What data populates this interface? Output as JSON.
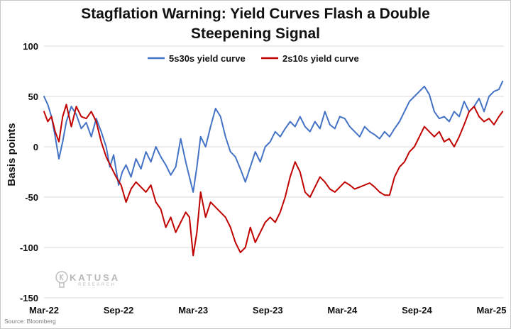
{
  "source": "Source: Bloomberg",
  "logo": {
    "word": "KATUSA",
    "sub": "RESEARCH"
  },
  "colors": {
    "five_s30s": "#4472c4",
    "two_s10s": "#c00000",
    "grid": "#d9d9d9"
  },
  "chart_data": {
    "type": "line",
    "title_line1": "Stagflation Warning: Yield Curves Flash a Double",
    "title_line2": "Steepening Signal",
    "xlabel": "",
    "ylabel": "Basis points",
    "ylim": [
      -150,
      100
    ],
    "yticks": [
      100,
      50,
      0,
      -50,
      -100,
      -150
    ],
    "xlim": [
      0,
      37
    ],
    "xticks": [
      {
        "x": 0,
        "label": "Mar-22"
      },
      {
        "x": 6,
        "label": "Sep-22"
      },
      {
        "x": 12,
        "label": "Mar-23"
      },
      {
        "x": 18,
        "label": "Sep-23"
      },
      {
        "x": 24,
        "label": "Mar-24"
      },
      {
        "x": 30,
        "label": "Sep-24"
      },
      {
        "x": 36,
        "label": "Mar-25"
      }
    ],
    "grid": "horizontal",
    "legend": "top-center",
    "series": [
      {
        "name": "5s30s yield curve",
        "color": "#4472c4",
        "x": [
          0,
          0.3,
          0.6,
          0.9,
          1.2,
          1.5,
          1.8,
          2.2,
          2.6,
          3.0,
          3.4,
          3.8,
          4.2,
          4.6,
          5.0,
          5.3,
          5.6,
          6.0,
          6.3,
          6.6,
          7.0,
          7.4,
          7.8,
          8.2,
          8.6,
          9.0,
          9.4,
          9.8,
          10.2,
          10.6,
          11.0,
          11.4,
          11.7,
          12.0,
          12.3,
          12.6,
          13.0,
          13.4,
          13.8,
          14.2,
          14.6,
          15.0,
          15.4,
          15.8,
          16.2,
          16.6,
          17.0,
          17.4,
          17.8,
          18.2,
          18.6,
          19.0,
          19.4,
          19.8,
          20.2,
          20.6,
          21.0,
          21.4,
          21.8,
          22.2,
          22.6,
          23.0,
          23.4,
          23.8,
          24.2,
          24.6,
          25.0,
          25.4,
          25.8,
          26.2,
          26.6,
          27.0,
          27.4,
          27.8,
          28.2,
          28.6,
          29.0,
          29.4,
          29.8,
          30.2,
          30.6,
          31.0,
          31.4,
          31.8,
          32.2,
          32.6,
          33.0,
          33.4,
          33.8,
          34.2,
          34.6,
          35.0,
          35.4,
          35.8,
          36.2,
          36.6,
          36.9
        ],
        "values": [
          50,
          42,
          30,
          10,
          -12,
          5,
          25,
          40,
          32,
          18,
          24,
          10,
          28,
          15,
          0,
          -20,
          -8,
          -38,
          -25,
          -18,
          -30,
          -12,
          -22,
          -5,
          -15,
          0,
          -10,
          -18,
          -28,
          -20,
          8,
          -15,
          -30,
          -45,
          -20,
          10,
          0,
          20,
          38,
          30,
          10,
          -5,
          -10,
          -22,
          -35,
          -20,
          -5,
          -15,
          0,
          5,
          15,
          10,
          18,
          25,
          20,
          30,
          20,
          15,
          25,
          18,
          35,
          22,
          18,
          30,
          28,
          20,
          15,
          10,
          20,
          15,
          12,
          8,
          15,
          10,
          18,
          25,
          35,
          45,
          50,
          55,
          60,
          52,
          35,
          28,
          30,
          25,
          35,
          30,
          45,
          35,
          40,
          48,
          35,
          50,
          55,
          57,
          65
        ]
      },
      {
        "name": "2s10s yield curve",
        "color": "#c00000",
        "x": [
          0,
          0.3,
          0.6,
          0.9,
          1.2,
          1.5,
          1.8,
          2.2,
          2.6,
          3.0,
          3.4,
          3.8,
          4.2,
          4.6,
          5.0,
          5.4,
          5.8,
          6.2,
          6.6,
          7.0,
          7.4,
          7.8,
          8.2,
          8.6,
          9.0,
          9.4,
          9.8,
          10.2,
          10.6,
          11.0,
          11.4,
          11.7,
          12.0,
          12.3,
          12.6,
          13.0,
          13.4,
          13.8,
          14.2,
          14.6,
          15.0,
          15.4,
          15.8,
          16.2,
          16.6,
          17.0,
          17.4,
          17.8,
          18.2,
          18.6,
          19.0,
          19.4,
          19.8,
          20.2,
          20.6,
          21.0,
          21.4,
          21.8,
          22.2,
          22.6,
          23.0,
          23.4,
          23.8,
          24.2,
          24.6,
          25.0,
          25.4,
          25.8,
          26.2,
          26.6,
          27.0,
          27.4,
          27.8,
          28.2,
          28.6,
          29.0,
          29.4,
          29.8,
          30.2,
          30.6,
          31.0,
          31.4,
          31.8,
          32.2,
          32.6,
          33.0,
          33.4,
          33.8,
          34.2,
          34.6,
          35.0,
          35.4,
          35.8,
          36.2,
          36.6,
          36.9
        ],
        "values": [
          35,
          25,
          30,
          15,
          5,
          30,
          42,
          20,
          40,
          30,
          28,
          35,
          25,
          5,
          -10,
          -20,
          -30,
          -38,
          -55,
          -42,
          -35,
          -40,
          -45,
          -38,
          -55,
          -62,
          -80,
          -70,
          -85,
          -75,
          -65,
          -70,
          -108,
          -85,
          -45,
          -70,
          -55,
          -60,
          -65,
          -70,
          -80,
          -95,
          -105,
          -100,
          -80,
          -95,
          -85,
          -75,
          -70,
          -75,
          -65,
          -50,
          -30,
          -15,
          -25,
          -45,
          -50,
          -40,
          -30,
          -35,
          -42,
          -45,
          -40,
          -35,
          -38,
          -42,
          -40,
          -38,
          -36,
          -40,
          -45,
          -48,
          -48,
          -30,
          -20,
          -15,
          -5,
          0,
          10,
          20,
          15,
          10,
          15,
          5,
          8,
          0,
          10,
          22,
          35,
          40,
          30,
          25,
          28,
          22,
          30,
          35
        ]
      }
    ]
  }
}
